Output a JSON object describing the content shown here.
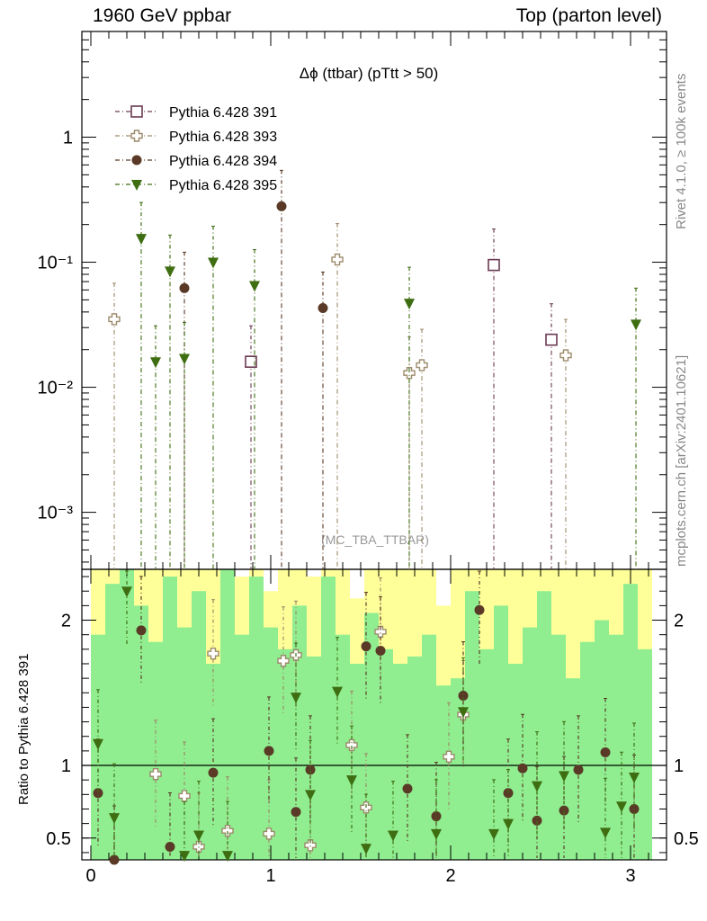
{
  "header": {
    "left": "1960 GeV ppbar",
    "right": "Top (parton level)",
    "side_rivet": "Rivet 4.1.0, ≥ 100k events",
    "side_mcplots": "mcplots.cern.ch [arXiv:2401.10621]"
  },
  "colors": {
    "s391": "#6b3a52",
    "s393": "#9c8a6a",
    "s394": "#5a3a26",
    "s395": "#3f6e12",
    "band_yellow": "#ffff99",
    "band_green": "#90ee90"
  },
  "chart_data": [
    {
      "type": "scatter",
      "title": "Δϕ (ttbar) (pTtt > 50)",
      "watermark": "(MC_TBA_TTBAR)",
      "yscale": "log",
      "ylim": [
        0.00035,
        7
      ],
      "xlim": [
        -0.05,
        3.2
      ],
      "yticks": [
        {
          "value": 1,
          "label": "1"
        },
        {
          "value": 0.1,
          "label": "10⁻¹"
        },
        {
          "value": 0.01,
          "label": "10⁻²"
        },
        {
          "value": 0.001,
          "label": "10⁻³"
        }
      ],
      "legend_position": "top-left",
      "series": [
        {
          "name": "Pythia 6.428 391",
          "marker": "open-square",
          "color_key": "s391",
          "x": [
            0.89,
            2.24,
            2.56
          ],
          "y": [
            0.016,
            0.095,
            0.024
          ]
        },
        {
          "name": "Pythia 6.428 393",
          "marker": "open-cross",
          "color_key": "s393",
          "x": [
            0.13,
            1.37,
            1.77,
            1.84,
            2.64
          ],
          "y": [
            0.035,
            0.105,
            0.013,
            0.015,
            0.018
          ]
        },
        {
          "name": "Pythia 6.428 394",
          "marker": "filled-circle",
          "color_key": "s394",
          "x": [
            0.52,
            1.06,
            1.29
          ],
          "y": [
            0.062,
            0.28,
            0.043
          ]
        },
        {
          "name": "Pythia 6.428 395",
          "marker": "filled-triangle-down",
          "color_key": "s395",
          "x": [
            0.28,
            0.36,
            0.44,
            0.52,
            0.68,
            0.91,
            1.77,
            3.03
          ],
          "y": [
            0.155,
            0.016,
            0.085,
            0.017,
            0.1,
            0.065,
            0.047,
            0.032
          ]
        }
      ]
    },
    {
      "type": "scatter",
      "ylabel": "Ratio to Pythia 6.428 391",
      "xlabel": "",
      "ylim": [
        0.35,
        2.35
      ],
      "xlim": [
        -0.05,
        3.2
      ],
      "xticks": [
        "0",
        "1",
        "2",
        "3"
      ],
      "yticks": [
        {
          "value": 2,
          "label": "2"
        },
        {
          "value": 1,
          "label": "1"
        },
        {
          "value": 0.5,
          "label": "0.5"
        }
      ],
      "reference_line": 1,
      "band_x": [
        0.0,
        0.08,
        0.16,
        0.24,
        0.32,
        0.4,
        0.48,
        0.56,
        0.64,
        0.72,
        0.8,
        0.88,
        0.96,
        1.04,
        1.12,
        1.2,
        1.28,
        1.36,
        1.44,
        1.52,
        1.6,
        1.68,
        1.76,
        1.84,
        1.92,
        2.0,
        2.08,
        2.16,
        2.24,
        2.32,
        2.4,
        2.48,
        2.56,
        2.64,
        2.72,
        2.8,
        2.88,
        2.96,
        3.04,
        3.12
      ],
      "band_green_hi": [
        1.9,
        2.25,
        2.35,
        2.1,
        1.85,
        2.3,
        1.95,
        2.2,
        1.7,
        2.35,
        1.9,
        2.3,
        1.95,
        1.8,
        2.1,
        1.75,
        2.3,
        1.9,
        1.7,
        2.05,
        1.8,
        1.7,
        1.75,
        1.9,
        1.55,
        1.6,
        2.2,
        1.8,
        2.1,
        1.7,
        1.95,
        2.2,
        1.9,
        1.6,
        1.85,
        2.0,
        1.9,
        2.25,
        1.8
      ],
      "band_yellow_hi": [
        2.35,
        2.35,
        2.35,
        2.35,
        2.35,
        2.35,
        2.35,
        2.35,
        2.35,
        2.35,
        2.3,
        2.35,
        2.2,
        2.35,
        2.35,
        2.3,
        2.35,
        2.35,
        2.15,
        2.35,
        2.35,
        2.35,
        2.35,
        2.35,
        2.1,
        2.35,
        2.35,
        2.35,
        2.35,
        2.35,
        2.35,
        2.35,
        2.35,
        2.35,
        2.35,
        2.35,
        2.35,
        2.35,
        2.35
      ],
      "band_green_lo": [
        0.35,
        0.35,
        0.35,
        0.35,
        0.35,
        0.35,
        0.35,
        0.35,
        0.35,
        0.35,
        0.35,
        0.35,
        0.35,
        0.35,
        0.35,
        0.35,
        0.35,
        0.35,
        0.35,
        0.35,
        0.35,
        0.35,
        0.35,
        0.35,
        0.35,
        0.35,
        0.35,
        0.35,
        0.35,
        0.35,
        0.35,
        0.35,
        0.35,
        0.35,
        0.35,
        0.35,
        0.35,
        0.35,
        0.35
      ],
      "band_yellow_lo": [
        0.35,
        0.35,
        0.35,
        0.52,
        0.35,
        0.35,
        0.35,
        0.35,
        0.35,
        0.35,
        0.35,
        0.35,
        0.35,
        0.35,
        0.35,
        0.35,
        0.35,
        0.55,
        0.35,
        0.35,
        0.35,
        0.35,
        0.35,
        0.35,
        0.4,
        0.35,
        0.35,
        0.35,
        0.35,
        0.35,
        0.35,
        0.35,
        0.35,
        0.35,
        0.35,
        0.35,
        0.35,
        0.35,
        0.35
      ],
      "series": [
        {
          "name": "Pythia 6.428 393",
          "marker": "open-cross",
          "color_key": "s393",
          "x": [
            0.36,
            0.52,
            0.6,
            0.68,
            0.76,
            0.99,
            1.07,
            1.14,
            1.22,
            1.45,
            1.53,
            1.61,
            1.99,
            2.07
          ],
          "y": [
            0.94,
            0.79,
            0.44,
            1.77,
            0.55,
            0.53,
            1.72,
            1.76,
            0.45,
            1.14,
            0.71,
            1.92,
            1.06,
            1.35
          ]
        },
        {
          "name": "Pythia 6.428 394",
          "marker": "filled-circle",
          "color_key": "s394",
          "x": [
            0.04,
            0.13,
            0.28,
            0.44,
            0.68,
            0.99,
            1.14,
            1.22,
            1.53,
            1.61,
            1.76,
            1.92,
            2.07,
            2.16,
            2.32,
            2.4,
            2.48,
            2.63,
            2.71,
            2.86,
            3.02
          ],
          "y": [
            0.81,
            0.35,
            1.93,
            0.44,
            0.95,
            1.1,
            0.68,
            0.97,
            1.82,
            1.79,
            0.84,
            0.65,
            1.48,
            2.07,
            0.81,
            0.98,
            0.62,
            0.69,
            0.97,
            1.09,
            0.7
          ]
        },
        {
          "name": "Pythia 6.428 395",
          "marker": "filled-triangle-down",
          "color_key": "s395",
          "x": [
            0.04,
            0.13,
            0.2,
            0.52,
            0.6,
            0.76,
            1.14,
            1.22,
            1.37,
            1.45,
            1.53,
            1.68,
            1.92,
            2.07,
            2.24,
            2.32,
            2.48,
            2.63,
            2.86,
            2.95,
            3.02
          ],
          "y": [
            1.15,
            0.64,
            2.2,
            0.38,
            0.52,
            0.38,
            1.47,
            0.8,
            1.51,
            0.9,
            0.43,
            0.52,
            0.53,
            1.37,
            0.53,
            0.6,
            0.86,
            0.93,
            0.54,
            0.72,
            0.92
          ]
        }
      ]
    }
  ]
}
